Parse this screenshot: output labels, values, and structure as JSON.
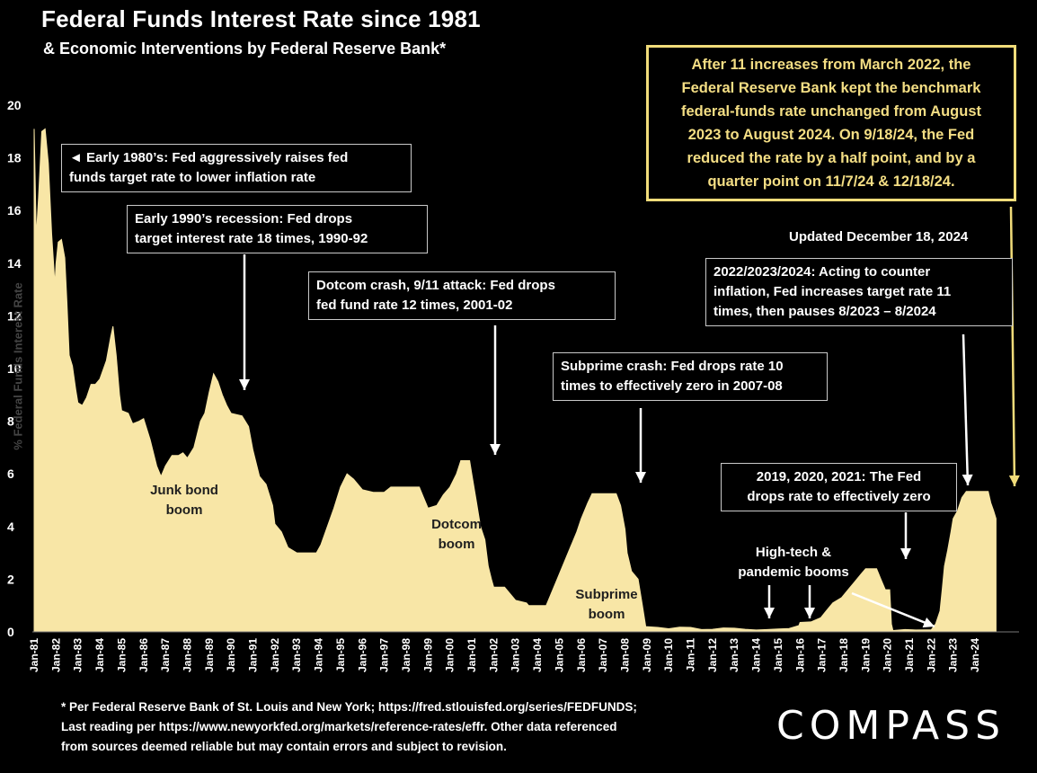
{
  "chart_data": {
    "type": "area",
    "title": "Federal Funds Interest Rate since 1981",
    "subtitle": "& Economic Interventions by Federal Reserve Bank*",
    "ylabel": "% Federal Funds Interest Rate",
    "ylim": [
      0,
      20
    ],
    "yticks": [
      "0",
      "2",
      "4",
      "6",
      "8",
      "10",
      "12",
      "14",
      "16",
      "18",
      "20"
    ],
    "xtick_labels": [
      "Jan-81",
      "Jan-82",
      "Jan-83",
      "Jan-84",
      "Jan-85",
      "Jan-86",
      "Jan-87",
      "Jan-88",
      "Jan-89",
      "Jan-90",
      "Jan-91",
      "Jan-92",
      "Jan-93",
      "Jan-94",
      "Jan-95",
      "Jan-96",
      "Jan-97",
      "Jan-98",
      "Jan-99",
      "Jan-00",
      "Jan-01",
      "Jan-02",
      "Jan-03",
      "Jan-04",
      "Jan-05",
      "Jan-06",
      "Jan-07",
      "Jan-08",
      "Jan-09",
      "Jan-10",
      "Jan-11",
      "Jan-12",
      "Jan-13",
      "Jan-14",
      "Jan-15",
      "Jan-16",
      "Jan-17",
      "Jan-18",
      "Jan-19",
      "Jan-20",
      "Jan-21",
      "Jan-22",
      "Jan-23",
      "Jan-24"
    ],
    "fill_color": "#f8e6a6",
    "series": [
      {
        "points": [
          [
            1981.0,
            19.1
          ],
          [
            1981.1,
            15.0
          ],
          [
            1981.2,
            16.5
          ],
          [
            1981.35,
            19.0
          ],
          [
            1981.5,
            19.1
          ],
          [
            1981.65,
            17.8
          ],
          [
            1981.8,
            15.1
          ],
          [
            1981.95,
            13.2
          ],
          [
            1982.0,
            14.0
          ],
          [
            1982.1,
            14.8
          ],
          [
            1982.25,
            14.9
          ],
          [
            1982.4,
            14.2
          ],
          [
            1982.5,
            12.5
          ],
          [
            1982.6,
            10.5
          ],
          [
            1982.75,
            10.1
          ],
          [
            1982.9,
            9.2
          ],
          [
            1983.0,
            8.7
          ],
          [
            1983.2,
            8.6
          ],
          [
            1983.4,
            8.9
          ],
          [
            1983.6,
            9.4
          ],
          [
            1983.8,
            9.4
          ],
          [
            1984.0,
            9.6
          ],
          [
            1984.3,
            10.3
          ],
          [
            1984.5,
            11.2
          ],
          [
            1984.6,
            11.6
          ],
          [
            1984.75,
            10.5
          ],
          [
            1984.9,
            9.0
          ],
          [
            1985.0,
            8.4
          ],
          [
            1985.3,
            8.3
          ],
          [
            1985.5,
            7.9
          ],
          [
            1985.8,
            8.0
          ],
          [
            1986.0,
            8.1
          ],
          [
            1986.3,
            7.3
          ],
          [
            1986.6,
            6.3
          ],
          [
            1986.8,
            5.9
          ],
          [
            1987.0,
            6.3
          ],
          [
            1987.3,
            6.7
          ],
          [
            1987.6,
            6.7
          ],
          [
            1987.8,
            6.8
          ],
          [
            1988.0,
            6.6
          ],
          [
            1988.3,
            7.0
          ],
          [
            1988.6,
            8.0
          ],
          [
            1988.8,
            8.3
          ],
          [
            1989.0,
            9.1
          ],
          [
            1989.2,
            9.8
          ],
          [
            1989.4,
            9.5
          ],
          [
            1989.6,
            9.0
          ],
          [
            1989.8,
            8.6
          ],
          [
            1990.0,
            8.3
          ],
          [
            1990.5,
            8.2
          ],
          [
            1990.8,
            7.8
          ],
          [
            1991.0,
            6.9
          ],
          [
            1991.3,
            5.9
          ],
          [
            1991.6,
            5.6
          ],
          [
            1991.9,
            4.8
          ],
          [
            1992.0,
            4.1
          ],
          [
            1992.3,
            3.8
          ],
          [
            1992.6,
            3.2
          ],
          [
            1993.0,
            3.0
          ],
          [
            1993.5,
            3.0
          ],
          [
            1993.9,
            3.0
          ],
          [
            1994.1,
            3.3
          ],
          [
            1994.4,
            4.0
          ],
          [
            1994.7,
            4.7
          ],
          [
            1995.0,
            5.5
          ],
          [
            1995.3,
            6.0
          ],
          [
            1995.6,
            5.8
          ],
          [
            1996.0,
            5.4
          ],
          [
            1996.5,
            5.3
          ],
          [
            1997.0,
            5.3
          ],
          [
            1997.3,
            5.5
          ],
          [
            1997.6,
            5.5
          ],
          [
            1998.0,
            5.5
          ],
          [
            1998.6,
            5.5
          ],
          [
            1998.8,
            5.1
          ],
          [
            1999.0,
            4.7
          ],
          [
            1999.4,
            4.8
          ],
          [
            1999.7,
            5.2
          ],
          [
            2000.0,
            5.5
          ],
          [
            2000.3,
            6.0
          ],
          [
            2000.5,
            6.5
          ],
          [
            2000.9,
            6.5
          ],
          [
            2001.0,
            6.0
          ],
          [
            2001.2,
            5.0
          ],
          [
            2001.4,
            4.0
          ],
          [
            2001.6,
            3.5
          ],
          [
            2001.75,
            2.5
          ],
          [
            2001.9,
            2.0
          ],
          [
            2002.0,
            1.7
          ],
          [
            2002.5,
            1.7
          ],
          [
            2002.9,
            1.3
          ],
          [
            2003.0,
            1.2
          ],
          [
            2003.5,
            1.1
          ],
          [
            2003.6,
            1.0
          ],
          [
            2004.0,
            1.0
          ],
          [
            2004.4,
            1.0
          ],
          [
            2004.6,
            1.4
          ],
          [
            2004.9,
            2.0
          ],
          [
            2005.2,
            2.6
          ],
          [
            2005.5,
            3.2
          ],
          [
            2005.8,
            3.8
          ],
          [
            2006.0,
            4.3
          ],
          [
            2006.3,
            4.9
          ],
          [
            2006.5,
            5.25
          ],
          [
            2007.0,
            5.25
          ],
          [
            2007.6,
            5.25
          ],
          [
            2007.8,
            4.8
          ],
          [
            2008.0,
            3.9
          ],
          [
            2008.1,
            3.0
          ],
          [
            2008.3,
            2.3
          ],
          [
            2008.6,
            2.0
          ],
          [
            2008.8,
            1.0
          ],
          [
            2008.95,
            0.2
          ],
          [
            2009.5,
            0.17
          ],
          [
            2010.0,
            0.12
          ],
          [
            2010.5,
            0.18
          ],
          [
            2011.0,
            0.17
          ],
          [
            2011.5,
            0.09
          ],
          [
            2012.0,
            0.1
          ],
          [
            2012.5,
            0.15
          ],
          [
            2013.0,
            0.14
          ],
          [
            2013.5,
            0.1
          ],
          [
            2014.0,
            0.07
          ],
          [
            2014.5,
            0.09
          ],
          [
            2015.0,
            0.11
          ],
          [
            2015.5,
            0.13
          ],
          [
            2015.95,
            0.24
          ],
          [
            2016.0,
            0.36
          ],
          [
            2016.5,
            0.38
          ],
          [
            2016.95,
            0.54
          ],
          [
            2017.2,
            0.8
          ],
          [
            2017.5,
            1.1
          ],
          [
            2017.9,
            1.3
          ],
          [
            2018.2,
            1.6
          ],
          [
            2018.5,
            1.9
          ],
          [
            2018.8,
            2.2
          ],
          [
            2019.0,
            2.4
          ],
          [
            2019.5,
            2.4
          ],
          [
            2019.7,
            2.0
          ],
          [
            2019.9,
            1.6
          ],
          [
            2020.1,
            1.6
          ],
          [
            2020.18,
            0.3
          ],
          [
            2020.25,
            0.05
          ],
          [
            2020.8,
            0.09
          ],
          [
            2021.3,
            0.07
          ],
          [
            2021.8,
            0.08
          ],
          [
            2022.0,
            0.08
          ],
          [
            2022.2,
            0.3
          ],
          [
            2022.4,
            0.8
          ],
          [
            2022.5,
            1.6
          ],
          [
            2022.6,
            2.5
          ],
          [
            2022.75,
            3.1
          ],
          [
            2022.9,
            3.8
          ],
          [
            2023.0,
            4.3
          ],
          [
            2023.2,
            4.6
          ],
          [
            2023.4,
            5.1
          ],
          [
            2023.6,
            5.33
          ],
          [
            2024.0,
            5.33
          ],
          [
            2024.6,
            5.33
          ],
          [
            2024.72,
            4.9
          ],
          [
            2024.85,
            4.6
          ],
          [
            2024.96,
            4.3
          ]
        ]
      }
    ],
    "annotations": [
      {
        "text": "◄ Early 1980’s: Fed aggressively raises fed funds target rate to lower inflation rate"
      },
      {
        "text": "Early 1990’s recession: Fed drops target interest rate 18 times, 1990-92"
      },
      {
        "text": "Dotcom crash, 9/11 attack: Fed drops fed fund rate 12 times, 2001-02"
      },
      {
        "text": "Subprime crash: Fed drops rate 10 times to effectively zero in 2007-08"
      },
      {
        "text": "2022/2023/2024: Acting to counter inflation, Fed increases target rate 11 times, then pauses 8/2023 – 8/2024"
      },
      {
        "text": "2019, 2020, 2021: The Fed drops rate to effectively zero"
      }
    ]
  },
  "header": {
    "title": "Federal Funds Interest Rate since 1981",
    "subtitle": "& Economic Interventions by Federal Reserve Bank*"
  },
  "callouts": {
    "early80s_line1": "◄ Early 1980’s: Fed aggressively raises fed",
    "early80s_line2": "funds target rate to lower inflation rate",
    "early90s_line1": "Early 1990’s recession: Fed drops",
    "early90s_line2": "target interest rate 18 times, 1990-92",
    "dotcom_line1": "Dotcom crash, 9/11 attack: Fed drops",
    "dotcom_line2": "fed fund rate 12 times, 2001-02",
    "subprime_line1": "Subprime crash: Fed drops rate 10",
    "subprime_line2": "times to effectively zero in 2007-08",
    "recent_line1": "2022/2023/2024: Acting to counter",
    "recent_line2": "inflation, Fed increases target rate 11",
    "recent_line3": "times, then pauses 8/2023 – 8/2024",
    "zero_line1": "2019, 2020, 2021: The Fed",
    "zero_line2": "drops rate to effectively zero",
    "gold_line1": "After 11 increases from March 2022, the",
    "gold_line2": "Federal Reserve Bank kept the benchmark",
    "gold_line3": "federal-funds rate unchanged from August",
    "gold_line4": "2023 to August 2024. On 9/18/24, the Fed",
    "gold_line5": "reduced the rate by a half point, and by a",
    "gold_line6": "quarter point on 11/7/24 & 12/18/24."
  },
  "updated": "Updated December 18, 2024",
  "area_labels": {
    "junk1": "Junk bond",
    "junk2": "boom",
    "dotcom1": "Dotcom",
    "dotcom2": "boom",
    "subprime1": "Subprime",
    "subprime2": "boom",
    "hightech1": "High-tech &",
    "hightech2": "pandemic booms"
  },
  "footnote": {
    "line1": "* Per Federal Reserve Bank of St. Louis and New York; https://fred.stlouisfed.org/series/FEDFUNDS;",
    "line2": "Last reading per https://www.newyorkfed.org/markets/reference-rates/effr. Other data referenced",
    "line3": "from sources deemed reliable but may contain errors and subject to revision."
  },
  "logo": "COMPASS",
  "colors": {
    "fill": "#f8e6a6",
    "gold": "#f1dc7a",
    "background": "#000000"
  }
}
